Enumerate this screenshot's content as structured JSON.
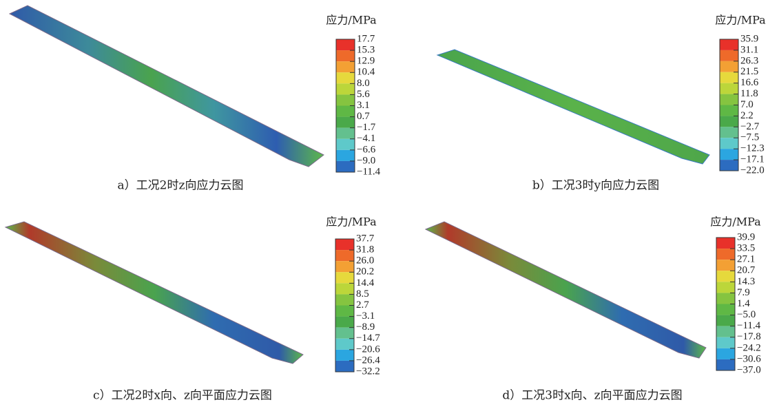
{
  "band_colors": [
    "#e8312a",
    "#ee6a2a",
    "#f3a034",
    "#e6d93c",
    "#bcd63a",
    "#85c440",
    "#5fb845",
    "#4aa94a",
    "#63c08e",
    "#5ec9ca",
    "#2ba6e0",
    "#2c6cc0",
    "#2a4fa5"
  ],
  "panels": [
    {
      "legend_title": "应力/MPa",
      "legend_labels": [
        "17.7",
        "15.3",
        "12.9",
        "10.4",
        "8.0",
        "5.6",
        "3.1",
        "0.7",
        "−1.7",
        "−4.1",
        "−6.6",
        "−9.0",
        "−11.4"
      ],
      "caption": "a）工况2时z向应力云图"
    },
    {
      "legend_title": "应力/MPa",
      "legend_labels": [
        "35.9",
        "31.1",
        "26.3",
        "21.5",
        "16.6",
        "11.8",
        "7.0",
        "2.2",
        "−2.7",
        "−7.5",
        "−12.3",
        "−17.1",
        "−22.0"
      ],
      "caption": "b）工况3时y向应力云图"
    },
    {
      "legend_title": "应力/MPa",
      "legend_labels": [
        "37.7",
        "31.8",
        "26.0",
        "20.2",
        "14.4",
        "8.5",
        "2.7",
        "−3.1",
        "−8.9",
        "−14.7",
        "−20.6",
        "−26.4",
        "−32.2"
      ],
      "caption": "c）工况2时x向、z向平面应力云图"
    },
    {
      "legend_title": "应力/MPa",
      "legend_labels": [
        "39.9",
        "33.5",
        "27.1",
        "20.7",
        "14.3",
        "7.9",
        "1.4",
        "−5.0",
        "−11.4",
        "−17.8",
        "−24.2",
        "−30.6",
        "−37.0"
      ],
      "caption": "d）工况3时x向、z向平面应力云图"
    }
  ]
}
